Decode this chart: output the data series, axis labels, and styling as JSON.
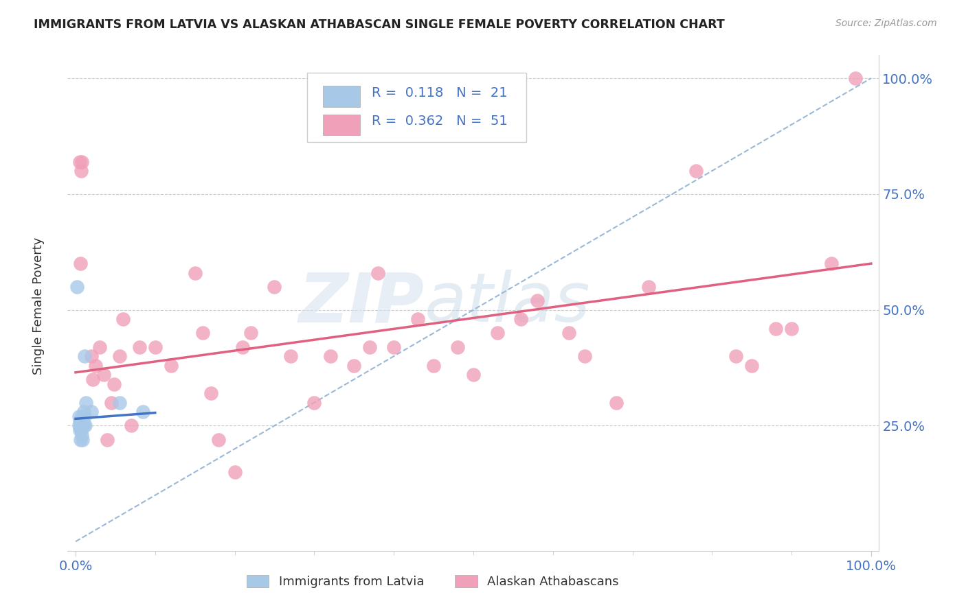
{
  "title": "IMMIGRANTS FROM LATVIA VS ALASKAN ATHABASCAN SINGLE FEMALE POVERTY CORRELATION CHART",
  "source": "Source: ZipAtlas.com",
  "ylabel": "Single Female Poverty",
  "legend_blue_r": "0.118",
  "legend_blue_n": "21",
  "legend_pink_r": "0.362",
  "legend_pink_n": "51",
  "legend_blue_label": "Immigrants from Latvia",
  "legend_pink_label": "Alaskan Athabascans",
  "watermark_zip": "ZIP",
  "watermark_atlas": "atlas",
  "blue_scatter_color": "#a8c8e8",
  "pink_scatter_color": "#f0a0b8",
  "blue_line_color": "#4472c4",
  "pink_line_color": "#e06080",
  "dashed_line_color": "#9ab8d8",
  "grid_color": "#cccccc",
  "tick_color": "#4472c4",
  "blue_scatter_x": [
    0.002,
    0.004,
    0.004,
    0.005,
    0.005,
    0.006,
    0.006,
    0.007,
    0.008,
    0.008,
    0.009,
    0.009,
    0.01,
    0.01,
    0.011,
    0.011,
    0.012,
    0.013,
    0.02,
    0.055,
    0.085
  ],
  "blue_scatter_y": [
    0.55,
    0.25,
    0.27,
    0.24,
    0.26,
    0.22,
    0.25,
    0.24,
    0.23,
    0.27,
    0.22,
    0.25,
    0.25,
    0.28,
    0.27,
    0.4,
    0.25,
    0.3,
    0.28,
    0.3,
    0.28
  ],
  "pink_scatter_x": [
    0.005,
    0.006,
    0.007,
    0.008,
    0.02,
    0.022,
    0.025,
    0.03,
    0.035,
    0.04,
    0.045,
    0.048,
    0.055,
    0.06,
    0.07,
    0.08,
    0.1,
    0.12,
    0.15,
    0.16,
    0.17,
    0.18,
    0.2,
    0.21,
    0.22,
    0.25,
    0.27,
    0.3,
    0.32,
    0.35,
    0.37,
    0.38,
    0.4,
    0.43,
    0.45,
    0.48,
    0.5,
    0.53,
    0.56,
    0.58,
    0.62,
    0.64,
    0.68,
    0.72,
    0.78,
    0.83,
    0.85,
    0.88,
    0.9,
    0.95,
    0.98
  ],
  "pink_scatter_y": [
    0.82,
    0.6,
    0.8,
    0.82,
    0.4,
    0.35,
    0.38,
    0.42,
    0.36,
    0.22,
    0.3,
    0.34,
    0.4,
    0.48,
    0.25,
    0.42,
    0.42,
    0.38,
    0.58,
    0.45,
    0.32,
    0.22,
    0.15,
    0.42,
    0.45,
    0.55,
    0.4,
    0.3,
    0.4,
    0.38,
    0.42,
    0.58,
    0.42,
    0.48,
    0.38,
    0.42,
    0.36,
    0.45,
    0.48,
    0.52,
    0.45,
    0.4,
    0.3,
    0.55,
    0.8,
    0.4,
    0.38,
    0.46,
    0.46,
    0.6,
    1.0
  ],
  "blue_line_x0": 0.0,
  "blue_line_y0": 0.265,
  "blue_line_x1": 0.1,
  "blue_line_y1": 0.278,
  "pink_line_x0": 0.0,
  "pink_line_y0": 0.365,
  "pink_line_x1": 1.0,
  "pink_line_y1": 0.6,
  "dash_line_x0": 0.0,
  "dash_line_y0": 0.0,
  "dash_line_x1": 1.0,
  "dash_line_y1": 1.0,
  "xmin": 0.0,
  "xmax": 1.0,
  "ymin": 0.0,
  "ymax": 1.05,
  "ytick_positions": [
    0.25,
    0.5,
    0.75,
    1.0
  ],
  "ytick_labels": [
    "25.0%",
    "50.0%",
    "75.0%",
    "100.0%"
  ]
}
